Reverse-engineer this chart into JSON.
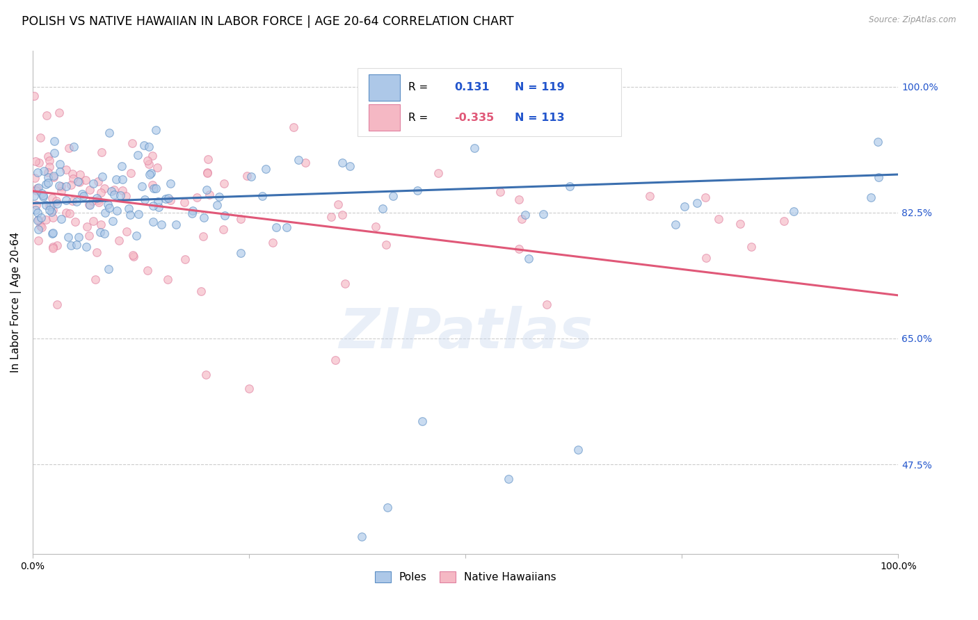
{
  "title": "POLISH VS NATIVE HAWAIIAN IN LABOR FORCE | AGE 20-64 CORRELATION CHART",
  "source": "Source: ZipAtlas.com",
  "ylabel": "In Labor Force | Age 20-64",
  "ytick_labels": [
    "100.0%",
    "82.5%",
    "65.0%",
    "47.5%"
  ],
  "ytick_values": [
    1.0,
    0.825,
    0.65,
    0.475
  ],
  "xlim": [
    0.0,
    1.0
  ],
  "ylim": [
    0.35,
    1.05
  ],
  "poles_color": "#adc8e8",
  "poles_edge_color": "#5b8ec4",
  "poles_line_color": "#3b6faf",
  "hawaiians_color": "#f5b8c4",
  "hawaiians_edge_color": "#e080a0",
  "hawaiians_line_color": "#e05878",
  "legend_text_color": "#2255cc",
  "R_poles": 0.131,
  "N_poles": 119,
  "R_hawaiians": -0.335,
  "N_hawaiians": 113,
  "watermark": "ZIPatlas",
  "background_color": "#ffffff",
  "grid_color": "#cccccc",
  "title_fontsize": 12.5,
  "ylabel_fontsize": 11,
  "tick_label_fontsize": 10,
  "scatter_size": 70,
  "scatter_alpha": 0.65
}
